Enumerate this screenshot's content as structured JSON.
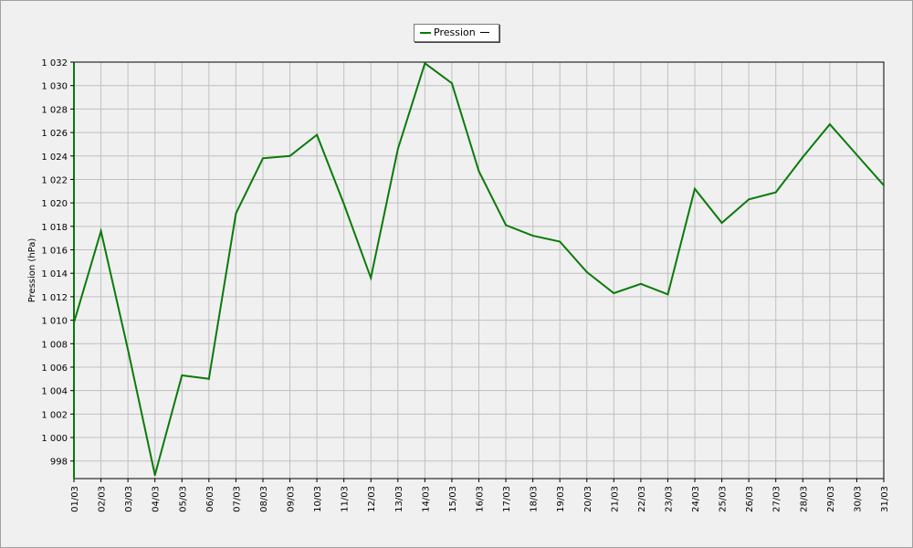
{
  "chart_data": {
    "type": "line",
    "title": "",
    "xlabel": "",
    "ylabel": "Pression (hPa)",
    "categories": [
      "01/03",
      "02/03",
      "03/03",
      "04/03",
      "05/03",
      "06/03",
      "07/03",
      "08/03",
      "09/03",
      "10/03",
      "11/03",
      "12/03",
      "13/03",
      "14/03",
      "15/03",
      "16/03",
      "17/03",
      "18/03",
      "19/03",
      "20/03",
      "21/03",
      "22/03",
      "23/03",
      "24/03",
      "25/03",
      "26/03",
      "27/03",
      "28/03",
      "29/03",
      "30/03",
      "31/03"
    ],
    "series": [
      {
        "name": "Pression",
        "color": "#0a7a0a",
        "values": [
          1009.8,
          1017.6,
          1007.5,
          996.8,
          1005.3,
          1005.0,
          1019.1,
          1023.8,
          1024.0,
          1025.8,
          1019.9,
          1013.6,
          1024.6,
          1031.9,
          1030.2,
          1022.7,
          1018.1,
          1017.2,
          1016.7,
          1014.1,
          1012.3,
          1013.1,
          1012.2,
          1021.2,
          1018.3,
          1020.3,
          1020.9,
          1023.9,
          1026.7,
          1024.1,
          1021.5
        ]
      }
    ],
    "ylim": [
      996.5,
      1032
    ],
    "y_ticks": [
      998,
      1000,
      1002,
      1004,
      1006,
      1008,
      1010,
      1012,
      1014,
      1016,
      1018,
      1020,
      1022,
      1024,
      1026,
      1028,
      1030,
      1032
    ],
    "y_tick_labels": [
      "998",
      "1 000",
      "1 002",
      "1 004",
      "1 006",
      "1 008",
      "1 010",
      "1 012",
      "1 014",
      "1 016",
      "1 018",
      "1 020",
      "1 022",
      "1 024",
      "1 026",
      "1 028",
      "1 030",
      "1 032"
    ],
    "grid": true,
    "legend_position": "top-center",
    "legend_trailing_symbol": "—",
    "background_color": "#f0f0f0",
    "grid_color": "#c0c0c0"
  }
}
